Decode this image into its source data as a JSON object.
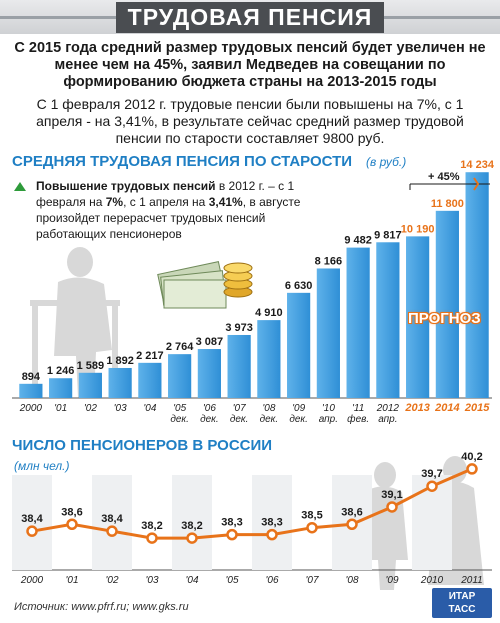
{
  "page_title": "ТРУДОВАЯ ПЕНСИЯ",
  "headline": "С 2015 года средний размер трудовых пенсий будет увеличен не менее чем на 45%, заявил Медведев на совещании по формированию бюджета страны на 2013-2015 годы",
  "subtext": "С 1 февраля 2012 г. трудовые пенсии были повышены на 7%, с 1 апреля - на 3,41%, в результате сейчас средний размер трудовой пенсии по старости составляет 9800 руб.",
  "note": {
    "bold_1": "Повышение трудовых пенсий",
    "text_1": " в 2012 г. – с 1 февраля на ",
    "bold_2": "7%",
    "text_2": ", с 1 апреля на ",
    "bold_3": "3,41%",
    "text_3": ", в августе произойдет перерасчет трудовых пенсий работающих пенсионеров"
  },
  "prognoz_label": "ПРОГНОЗ",
  "growth_label": "+ 45%",
  "source": "Источник: www.pfrf.ru; www.gks.ru",
  "logo": {
    "line1": "ИТАР",
    "line2": "ТАСС"
  },
  "colors": {
    "bar": "#2f8fd6",
    "bar_top": "#5fb2ea",
    "forecast_text": "#e8731a",
    "line": "#e8731a",
    "accent_title": "#1f7fc4"
  },
  "chart_data": [
    {
      "type": "bar",
      "title": "СРЕДНЯЯ ТРУДОВАЯ ПЕНСИЯ ПО СТАРОСТИ",
      "unit": "(в руб.)",
      "categories": [
        "2000",
        "'01",
        "'02",
        "'03",
        "'04",
        "'05, дек.",
        "'06, дек.",
        "'07, дек.",
        "'08, дек.",
        "'09, дек.",
        "'10, апр.",
        "'11, фев.",
        "2012, апр.",
        "2013",
        "2014",
        "2015"
      ],
      "values": [
        894,
        1246,
        1589,
        1892,
        2217,
        2764,
        3087,
        3973,
        4910,
        6630,
        8166,
        9482,
        9817,
        10190,
        11800,
        14234
      ],
      "value_labels": [
        "894",
        "1 246",
        "1 589",
        "1 892",
        "2 217",
        "2 764",
        "3 087",
        "3 973",
        "4 910",
        "6 630",
        "8 166",
        "9 482",
        "9 817",
        "10 190",
        "11 800",
        "14 234"
      ],
      "forecast_from_index": 13,
      "ylim": [
        0,
        14500
      ]
    },
    {
      "type": "line",
      "title": "ЧИСЛО ПЕНСИОНЕРОВ В РОССИИ",
      "unit": "(млн чел.)",
      "categories": [
        "2000",
        "'01",
        "'02",
        "'03",
        "'04",
        "'05",
        "'06",
        "'07",
        "'08",
        "'09",
        "2010",
        "2011"
      ],
      "values": [
        38.4,
        38.6,
        38.4,
        38.2,
        38.2,
        38.3,
        38.3,
        38.5,
        38.6,
        39.1,
        39.7,
        40.2
      ],
      "value_labels": [
        "38,4",
        "38,6",
        "38,4",
        "38,2",
        "38,2",
        "38,3",
        "38,3",
        "38,5",
        "38,6",
        "39,1",
        "39,7",
        "40,2"
      ],
      "ylim": [
        38.0,
        40.4
      ]
    }
  ]
}
